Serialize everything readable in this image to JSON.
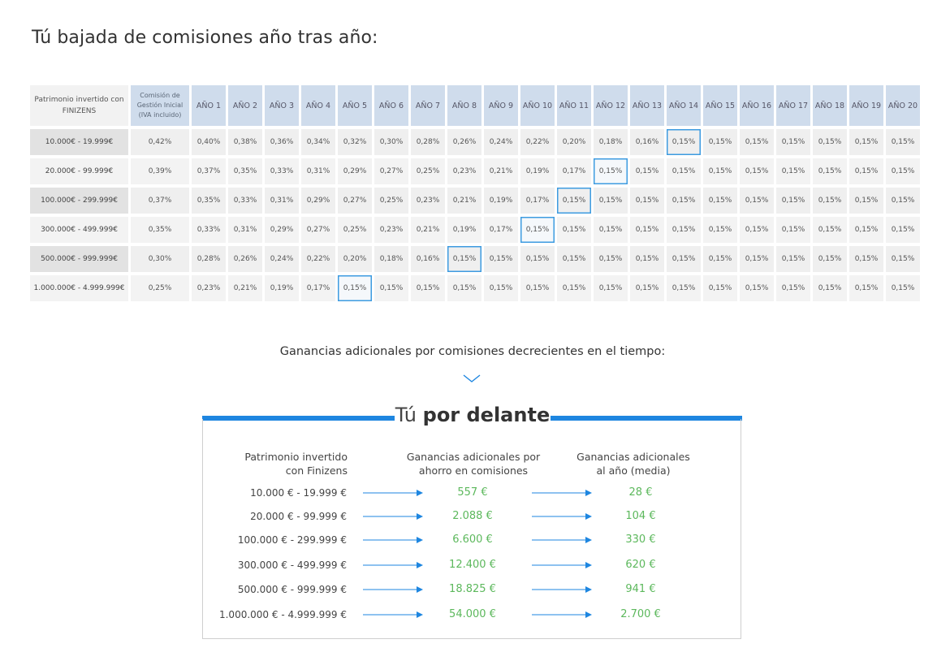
{
  "title": "Tú bajada de comisiones año tras año:",
  "table": {
    "header_patrimonio": "Patrimonio invertido con FINIZENS",
    "header_comision": "Comisión de Gestión Inicial (IVA incluido)",
    "years": [
      "AÑO 1",
      "AÑO 2",
      "AÑO 3",
      "AÑO 4",
      "AÑO 5",
      "AÑO 6",
      "AÑO 7",
      "AÑO 8",
      "AÑO 9",
      "AÑO 10",
      "AÑO 11",
      "AÑO 12",
      "AÑO 13",
      "AÑO 14",
      "AÑO 15",
      "AÑO 16",
      "AÑO 17",
      "AÑO 18",
      "AÑO 19",
      "AÑO 20"
    ],
    "rows": [
      {
        "label": "10.000€ - 19.999€",
        "initial": "0,42%",
        "highlight_year": 14,
        "values": [
          "0,40%",
          "0,38%",
          "0,36%",
          "0,34%",
          "0,32%",
          "0,30%",
          "0,28%",
          "0,26%",
          "0,24%",
          "0,22%",
          "0,20%",
          "0,18%",
          "0,16%",
          "0,15%",
          "0,15%",
          "0,15%",
          "0,15%",
          "0,15%",
          "0,15%",
          "0,15%"
        ]
      },
      {
        "label": "20.000€ - 99.999€",
        "initial": "0,39%",
        "highlight_year": 12,
        "values": [
          "0,37%",
          "0,35%",
          "0,33%",
          "0,31%",
          "0,29%",
          "0,27%",
          "0,25%",
          "0,23%",
          "0,21%",
          "0,19%",
          "0,17%",
          "0,15%",
          "0,15%",
          "0,15%",
          "0,15%",
          "0,15%",
          "0,15%",
          "0,15%",
          "0,15%",
          "0,15%"
        ]
      },
      {
        "label": "100.000€ - 299.999€",
        "initial": "0,37%",
        "highlight_year": 11,
        "values": [
          "0,35%",
          "0,33%",
          "0,31%",
          "0,29%",
          "0,27%",
          "0,25%",
          "0,23%",
          "0,21%",
          "0,19%",
          "0,17%",
          "0,15%",
          "0,15%",
          "0,15%",
          "0,15%",
          "0,15%",
          "0,15%",
          "0,15%",
          "0,15%",
          "0,15%",
          "0,15%"
        ]
      },
      {
        "label": "300.000€ - 499.999€",
        "initial": "0,35%",
        "highlight_year": 10,
        "values": [
          "0,33%",
          "0,31%",
          "0,29%",
          "0,27%",
          "0,25%",
          "0,23%",
          "0,21%",
          "0,19%",
          "0,17%",
          "0,15%",
          "0,15%",
          "0,15%",
          "0,15%",
          "0,15%",
          "0,15%",
          "0,15%",
          "0,15%",
          "0,15%",
          "0,15%",
          "0,15%"
        ]
      },
      {
        "label": "500.000€ - 999.999€",
        "initial": "0,30%",
        "highlight_year": 8,
        "values": [
          "0,28%",
          "0,26%",
          "0,24%",
          "0,22%",
          "0,20%",
          "0,18%",
          "0,16%",
          "0,15%",
          "0,15%",
          "0,15%",
          "0,15%",
          "0,15%",
          "0,15%",
          "0,15%",
          "0,15%",
          "0,15%",
          "0,15%",
          "0,15%",
          "0,15%",
          "0,15%"
        ]
      },
      {
        "label": "1.000.000€ - 4.999.999€",
        "initial": "0,25%",
        "highlight_year": 5,
        "values": [
          "0,23%",
          "0,21%",
          "0,19%",
          "0,17%",
          "0,15%",
          "0,15%",
          "0,15%",
          "0,15%",
          "0,15%",
          "0,15%",
          "0,15%",
          "0,15%",
          "0,15%",
          "0,15%",
          "0,15%",
          "0,15%",
          "0,15%",
          "0,15%",
          "0,15%",
          "0,15%"
        ]
      }
    ]
  },
  "caption": "Ganancias adicionales por comisiones decrecientes en el tiempo:",
  "summary": {
    "title_light": "Tú",
    "title_bold": "por delante",
    "col1_line1": "Patrimonio invertido",
    "col1_line2": "con Finizens",
    "col2_line1": "Ganancias adicionales por",
    "col2_line2": "ahorro en comisiones",
    "col3_line1": "Ganancias adicionales",
    "col3_line2": "al año (media)",
    "rows": [
      {
        "range": "10.000 € - 19.999 €",
        "total": "557 €",
        "yearly": "28 €"
      },
      {
        "range": "20.000 € - 99.999 €",
        "total": "2.088 €",
        "yearly": "104 €"
      },
      {
        "range": "100.000 € - 299.999 €",
        "total": "6.600 €",
        "yearly": "330 €"
      },
      {
        "range": "300.000 € - 499.999 €",
        "total": "12.400 €",
        "yearly": "620 €"
      },
      {
        "range": "500.000 € - 999.999 €",
        "total": "18.825 €",
        "yearly": "941 €"
      },
      {
        "range": "1.000.000 € - 4.999.999 €",
        "total": "54.000 €",
        "yearly": "2.700 €"
      }
    ]
  },
  "colors": {
    "accent": "#1e86e0",
    "highlight": "#3d9be0",
    "green": "#5cb85c",
    "header_bg": "#cfdcec"
  },
  "icons": {
    "caption_arrow": "chevron-down-icon",
    "row_arrow": "arrow-right-icon"
  }
}
